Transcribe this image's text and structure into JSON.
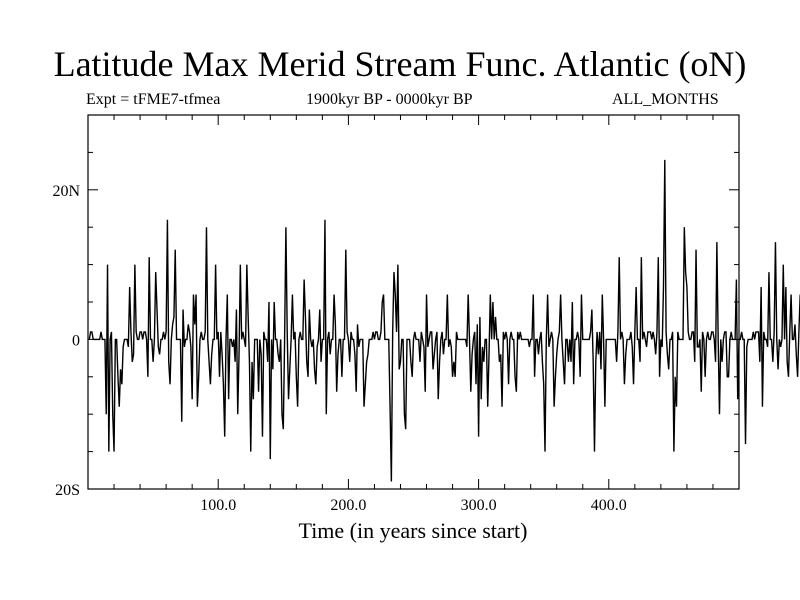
{
  "chart_data": {
    "type": "line",
    "title": "Latitude Max Merid Stream Func. Atlantic (oN)",
    "left_label": "Expt = tFME7-tfmea",
    "center_label": "1900kyr BP - 0000kyr BP",
    "right_label": "ALL_MONTHS",
    "xlabel": "Time (in years since start)",
    "ylabel": "",
    "xlim": [
      0,
      500
    ],
    "ylim": [
      -20,
      30
    ],
    "x_ticks": [
      {
        "value": 100,
        "label": "100.0"
      },
      {
        "value": 200,
        "label": "200.0"
      },
      {
        "value": 300,
        "label": "300.0"
      },
      {
        "value": 400,
        "label": "400.0"
      }
    ],
    "y_ticks": [
      {
        "value": 20,
        "label": "20N"
      },
      {
        "value": 0,
        "label": "0"
      },
      {
        "value": -20,
        "label": "20S"
      }
    ],
    "grid": false,
    "series": [
      {
        "name": "",
        "color": "#000000",
        "x_start": 1,
        "x_step": 1,
        "values": [
          0,
          1,
          1,
          0,
          0,
          0,
          0,
          0,
          0,
          1,
          0,
          0,
          0,
          -10,
          10,
          -15,
          0,
          1,
          -10,
          -15,
          0,
          0,
          -5,
          -9,
          -4,
          -6,
          -1,
          0,
          0,
          0,
          -1,
          7,
          1,
          -3,
          -2,
          10,
          1,
          0,
          0,
          1,
          1,
          0,
          1,
          1,
          0,
          -5,
          11,
          0,
          0,
          -3,
          0,
          9,
          4,
          -1,
          -2,
          0,
          0,
          1,
          0,
          1,
          16,
          -3,
          -6,
          0,
          2,
          3,
          12,
          0,
          0,
          0,
          0,
          -11,
          4,
          -1,
          0,
          0,
          2,
          1,
          -1,
          -8,
          6,
          2,
          6,
          -9,
          -5,
          0,
          1,
          0,
          0,
          1,
          15,
          0,
          -3,
          -6,
          -2,
          0,
          0,
          10,
          0,
          1,
          -5,
          1,
          -2,
          -6,
          -13,
          0,
          6,
          -8,
          0,
          0,
          -1,
          0,
          -3,
          4,
          -10,
          -2,
          10,
          0,
          1,
          0,
          -1,
          10,
          3,
          -3,
          -15,
          -3,
          -8,
          0,
          0,
          0,
          -7,
          0,
          -2,
          -13,
          1,
          0,
          0,
          -3,
          5,
          -16,
          0,
          -4,
          5,
          0,
          0,
          -2,
          -3,
          0,
          -10,
          -12,
          0,
          15,
          1,
          -8,
          -4,
          0,
          6,
          0,
          1,
          -5,
          -9,
          0,
          1,
          0,
          0,
          8,
          3,
          -3,
          -5,
          4,
          0,
          -1,
          0,
          -4,
          -6,
          -1,
          0,
          4,
          -3,
          0,
          0,
          16,
          -10,
          0,
          1,
          -2,
          0,
          0,
          6,
          2,
          -7,
          -2,
          0,
          0,
          -5,
          0,
          0,
          12,
          1,
          0,
          -3,
          1,
          0,
          0,
          -2,
          -7,
          2,
          -1,
          0,
          0,
          0,
          -9,
          -6,
          -3,
          -2,
          0,
          0,
          0,
          1,
          0,
          1,
          1,
          0,
          0,
          1,
          5,
          6,
          0,
          0,
          0,
          0,
          -9,
          -19,
          1,
          9,
          6,
          1,
          10,
          -4,
          -3,
          0,
          0,
          -10,
          -12,
          0,
          0,
          0,
          -3,
          -5,
          0,
          1,
          0,
          0,
          0,
          -3,
          1,
          0,
          -1,
          -7,
          6,
          -1,
          0,
          1,
          1,
          -4,
          -2,
          0,
          1,
          -8,
          -3,
          0,
          1,
          -2,
          0,
          0,
          6,
          -1,
          0,
          -1,
          -5,
          -3,
          -5,
          1,
          0,
          0,
          0,
          0,
          0,
          0,
          0,
          -1,
          6,
          0,
          -7,
          -2,
          0,
          1,
          -6,
          2,
          -13,
          3,
          -8,
          -1,
          -3,
          0,
          0,
          -9,
          -2,
          6,
          0,
          5,
          0,
          3,
          0,
          0,
          -3,
          -2,
          -9,
          1,
          0,
          1,
          0,
          -6,
          0,
          1,
          0,
          0,
          -5,
          -7,
          1,
          0,
          1,
          0,
          0,
          0,
          0,
          0,
          0,
          -1,
          0,
          0,
          6,
          -5,
          0,
          0,
          -2,
          0,
          1,
          -3,
          -6,
          -15,
          0,
          6,
          -1,
          0,
          1,
          0,
          -9,
          -5,
          -2,
          0,
          1,
          6,
          0,
          -3,
          -6,
          0,
          0,
          -3,
          0,
          -3,
          5,
          -6,
          0,
          0,
          1,
          0,
          -5,
          6,
          0,
          0,
          0,
          0,
          0,
          0,
          1,
          4,
          -3,
          -15,
          -3,
          1,
          -2,
          1,
          -4,
          6,
          0,
          -9,
          0,
          0,
          0,
          0,
          0,
          0,
          0,
          0,
          -3,
          1,
          11,
          0,
          1,
          0,
          -6,
          -2,
          0,
          0,
          0,
          1,
          -1,
          -6,
          1,
          7,
          0,
          0,
          -3,
          11,
          0,
          1,
          0,
          -1,
          1,
          1,
          1,
          0,
          1,
          0,
          -2,
          1,
          11,
          -5,
          0,
          -1,
          7,
          24,
          1,
          -2,
          -4,
          0,
          0,
          1,
          -15,
          -5,
          -9,
          1,
          0,
          0,
          0,
          0,
          15,
          9,
          7,
          1,
          0,
          0,
          1,
          1,
          -3,
          12,
          -1,
          -1,
          0,
          -7,
          1,
          0,
          -5,
          0,
          1,
          0,
          0,
          1,
          1,
          0,
          -3,
          13,
          0,
          -10,
          0,
          -3,
          0,
          1,
          1,
          -5,
          -5,
          0,
          1,
          0,
          0,
          0,
          8,
          -8,
          0,
          0,
          1,
          0,
          0,
          -14,
          -1,
          0,
          0,
          0,
          0,
          1,
          0,
          1,
          1,
          1,
          -3,
          7,
          -9,
          1,
          0,
          0,
          -1,
          9,
          0,
          0,
          -3,
          1,
          13,
          0,
          -4,
          0,
          -1,
          0,
          10,
          0,
          7,
          -3,
          -5,
          1,
          6,
          0,
          0,
          2,
          -2,
          -5,
          1,
          6,
          0,
          2,
          1,
          1
        ]
      }
    ]
  }
}
